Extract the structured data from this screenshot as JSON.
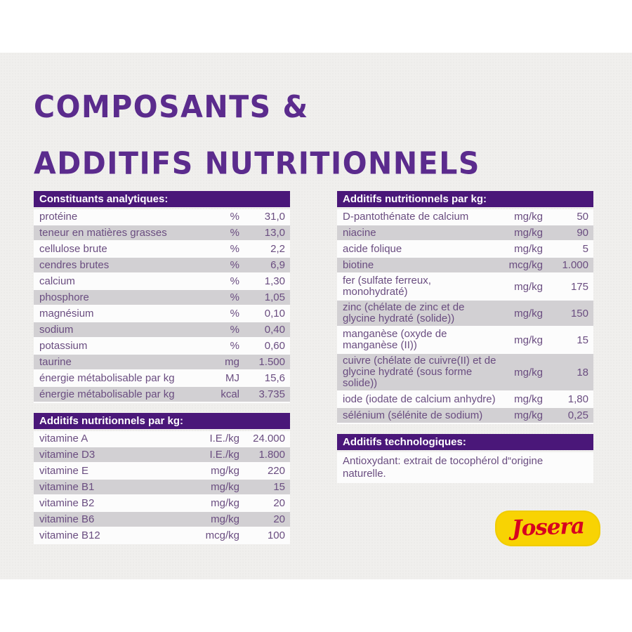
{
  "title": {
    "line1": "COMPOSANTS &",
    "line2": "ADDITIFS NUTRITIONNELS"
  },
  "colors": {
    "title": "#5b2b8d",
    "header-bg": "#4a1779",
    "row-text": "#6a4d80",
    "row-alt": "#d2d0d3",
    "row-white": "#fcfcfc",
    "card": "#f0efed",
    "logo-yellow": "#f8d303",
    "logo-red": "#d70020"
  },
  "tables": {
    "analytical": {
      "header": "Constituants analytiques:",
      "rows": [
        {
          "label": "protéine",
          "unit": "%",
          "value": "31,0"
        },
        {
          "label": "teneur en matières grasses",
          "unit": "%",
          "value": "13,0"
        },
        {
          "label": "cellulose brute",
          "unit": "%",
          "value": "2,2"
        },
        {
          "label": "cendres brutes",
          "unit": "%",
          "value": "6,9"
        },
        {
          "label": "calcium",
          "unit": "%",
          "value": "1,30"
        },
        {
          "label": "phosphore",
          "unit": "%",
          "value": "1,05"
        },
        {
          "label": "magnésium",
          "unit": "%",
          "value": "0,10"
        },
        {
          "label": "sodium",
          "unit": "%",
          "value": "0,40"
        },
        {
          "label": "potassium",
          "unit": "%",
          "value": "0,60"
        },
        {
          "label": "taurine",
          "unit": "mg",
          "value": "1.500"
        },
        {
          "label": "énergie métabolisable par kg",
          "unit": "MJ",
          "value": "15,6"
        },
        {
          "label": "énergie métabolisable par kg",
          "unit": "kcal",
          "value": "3.735"
        }
      ]
    },
    "vitamins": {
      "header": "Additifs nutritionnels par kg:",
      "rows": [
        {
          "label": "vitamine A",
          "unit": "I.E./kg",
          "value": "24.000"
        },
        {
          "label": "vitamine D3",
          "unit": "I.E./kg",
          "value": "1.800"
        },
        {
          "label": "vitamine E",
          "unit": "mg/kg",
          "value": "220"
        },
        {
          "label": "vitamine B1",
          "unit": "mg/kg",
          "value": "15"
        },
        {
          "label": "vitamine B2",
          "unit": "mg/kg",
          "value": "20"
        },
        {
          "label": "vitamine B6",
          "unit": "mg/kg",
          "value": "20"
        },
        {
          "label": "vitamine B12",
          "unit": "mcg/kg",
          "value": "100"
        }
      ]
    },
    "minerals": {
      "header": "Additifs nutritionnels par kg:",
      "rows": [
        {
          "label": "D-pantothénate de calcium",
          "unit": "mg/kg",
          "value": "50"
        },
        {
          "label": "niacine",
          "unit": "mg/kg",
          "value": "90"
        },
        {
          "label": "acide folique",
          "unit": "mg/kg",
          "value": "5"
        },
        {
          "label": "biotine",
          "unit": "mcg/kg",
          "value": "1.000"
        },
        {
          "label": "fer (sulfate ferreux, monohydraté)",
          "unit": "mg/kg",
          "value": "175"
        },
        {
          "label": "zinc (chélate de zinc et de glycine hydraté (solide))",
          "unit": "mg/kg",
          "value": "150"
        },
        {
          "label": "manganèse (oxyde de manganèse (II))",
          "unit": "mg/kg",
          "value": "15"
        },
        {
          "label": "cuivre (chélate de cuivre(II) et de glycine hydraté (sous forme solide))",
          "unit": "mg/kg",
          "value": "18"
        },
        {
          "label": "iode (iodate de calcium anhydre)",
          "unit": "mg/kg",
          "value": "1,80"
        },
        {
          "label": "sélénium (sélénite de sodium)",
          "unit": "mg/kg",
          "value": "0,25"
        }
      ]
    },
    "technological": {
      "header": "Additifs technologiques:",
      "note": "Antioxydant: extrait de tocophérol d“origine naturelle."
    }
  },
  "logo": {
    "text": "Josera"
  }
}
